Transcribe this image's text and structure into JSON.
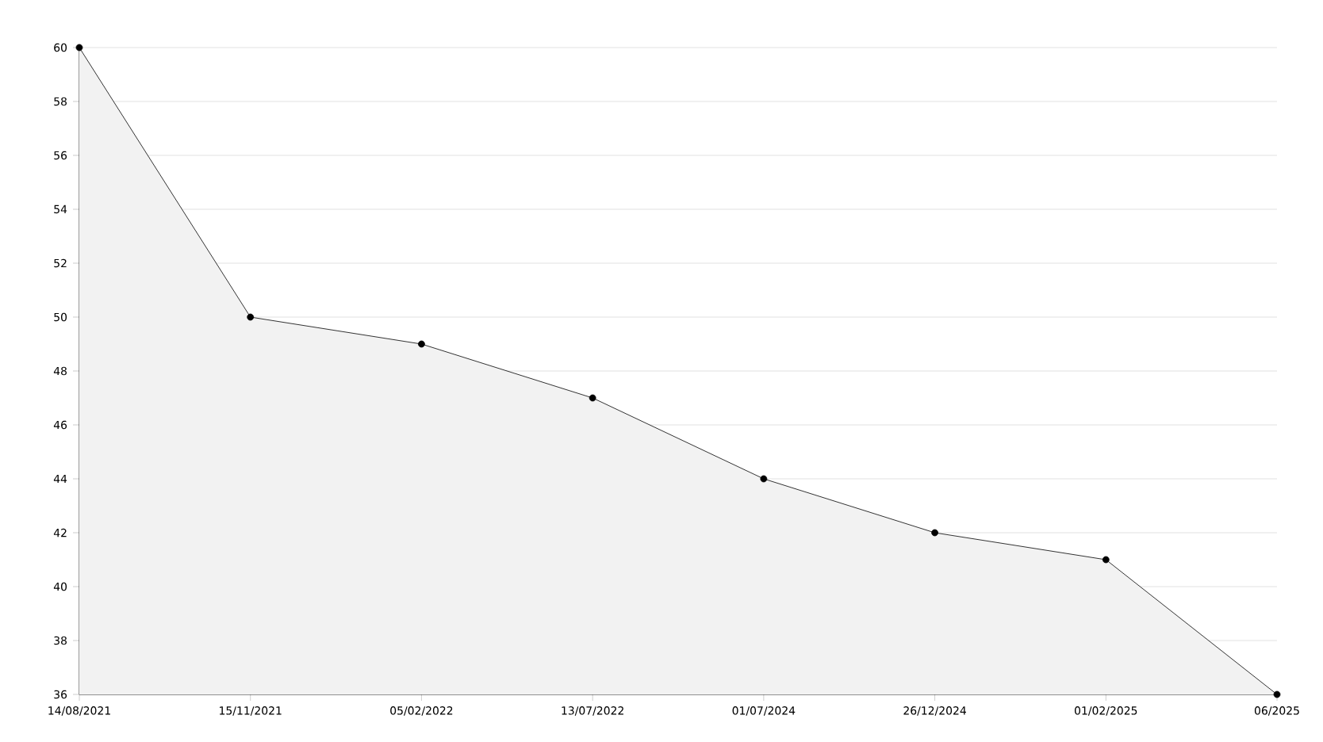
{
  "chart_data": {
    "type": "area",
    "categories": [
      "14/08/2021",
      "15/11/2021",
      "05/02/2022",
      "13/07/2022",
      "01/07/2024",
      "26/12/2024",
      "01/02/2025",
      "06/2025"
    ],
    "values": [
      60,
      50,
      49,
      47,
      44,
      42,
      41,
      36
    ],
    "color": "#000000",
    "marker": "circle",
    "grid": "y",
    "ylim": [
      36,
      60
    ],
    "yticks": [
      36,
      38,
      40,
      42,
      44,
      46,
      48,
      50,
      52,
      54,
      56,
      58,
      60
    ]
  }
}
